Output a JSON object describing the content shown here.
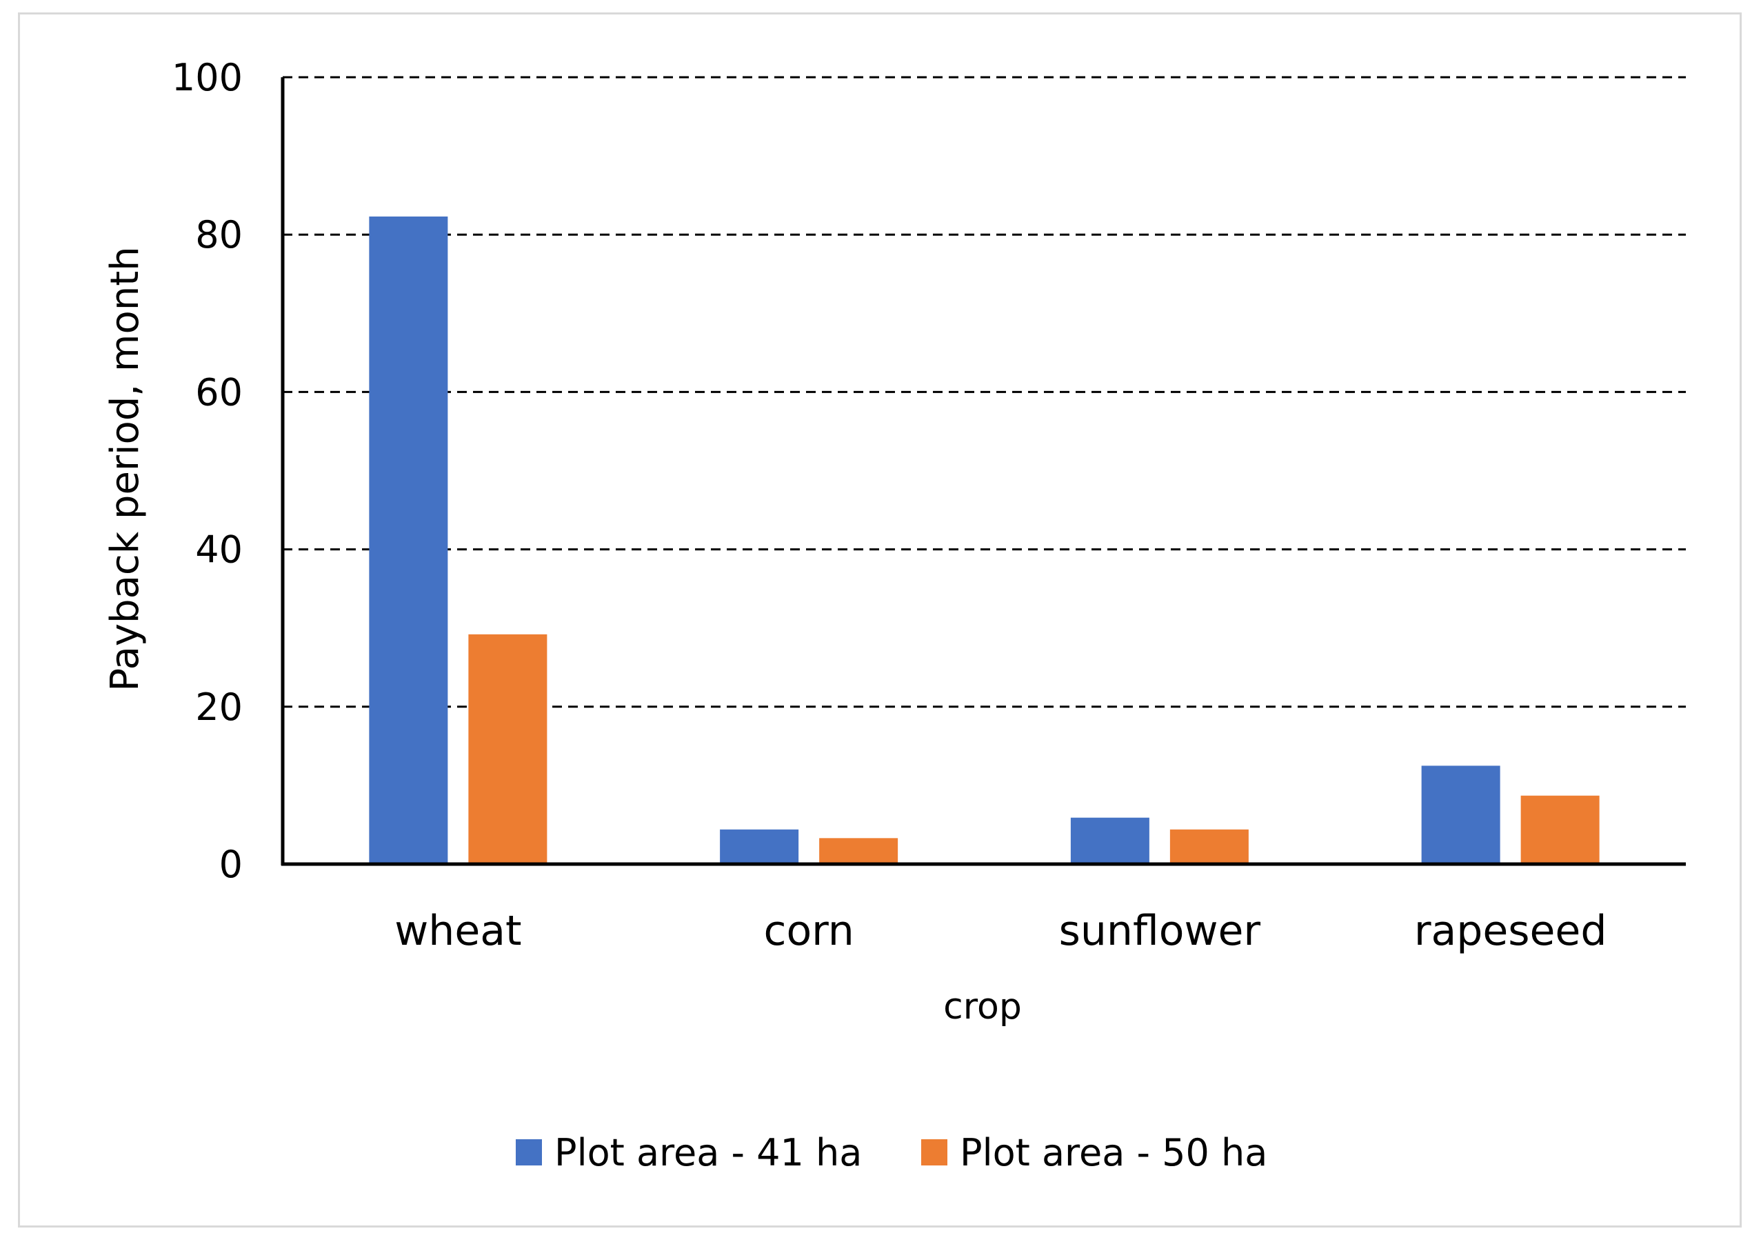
{
  "chart_data": {
    "type": "bar",
    "title": "",
    "xlabel": "crop",
    "ylabel": "Payback period, month",
    "categories": [
      "wheat",
      "corn",
      "sunflower",
      "rapeseed"
    ],
    "series": [
      {
        "name": "Plot area - 41 ha",
        "color": "#4472c4",
        "values": [
          82.3,
          4.4,
          5.9,
          12.5
        ]
      },
      {
        "name": "Plot area - 50 ha",
        "color": "#ed7d31",
        "values": [
          29.2,
          3.3,
          4.4,
          8.7
        ]
      }
    ],
    "ylim": [
      0,
      100
    ],
    "yticks": [
      0,
      20,
      40,
      60,
      80,
      100
    ],
    "grid": "dashed horizontal",
    "legend_position": "bottom-center"
  }
}
